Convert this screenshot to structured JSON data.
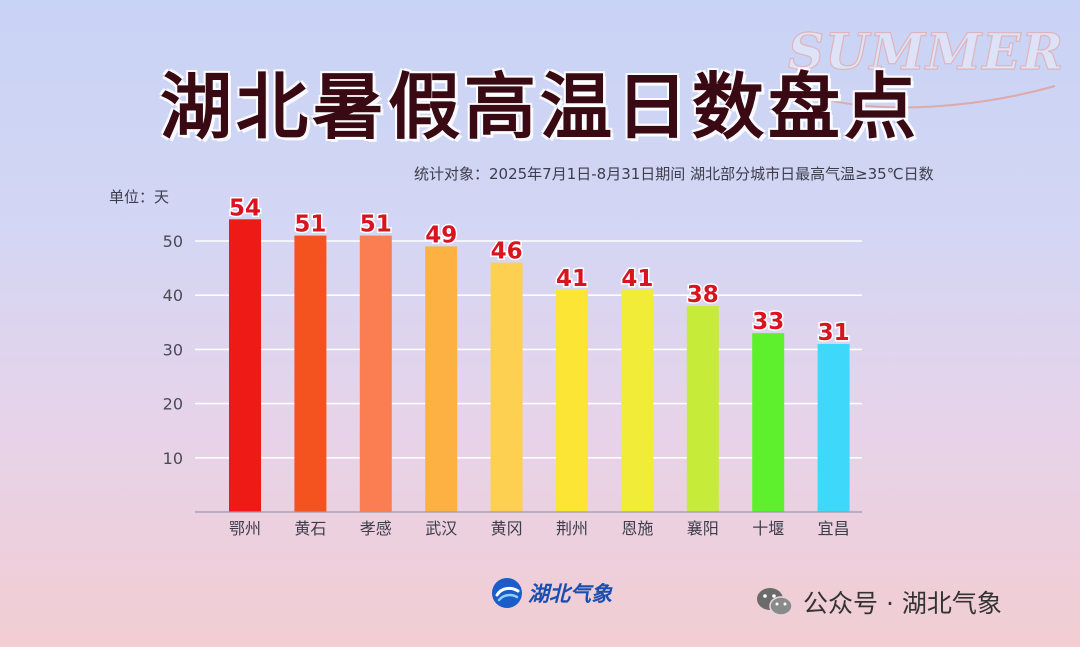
{
  "title": "湖北暑假高温日数盘点",
  "watermark": "SUMMER",
  "subtitle": "统计对象：2025年7月1日-8月31日期间 湖北部分城市日最高气温≥35℃日数",
  "unit_label": "单位：天",
  "chart_data": {
    "type": "bar",
    "title": "湖北暑假高温日数盘点",
    "xlabel": "",
    "ylabel": "单位：天",
    "categories": [
      "鄂州",
      "黄石",
      "孝感",
      "武汉",
      "黄冈",
      "荆州",
      "恩施",
      "襄阳",
      "十堰",
      "宜昌"
    ],
    "values": [
      54,
      51,
      51,
      49,
      46,
      41,
      41,
      38,
      33,
      31
    ],
    "value_labels": [
      "54",
      "51",
      "51",
      "49",
      "46",
      "41",
      "41",
      "38",
      "33",
      "31"
    ],
    "colors": [
      "#ee1a16",
      "#f4521f",
      "#fb7d52",
      "#fdb143",
      "#fdd052",
      "#fde535",
      "#f0ec38",
      "#c6eb38",
      "#5ef02d",
      "#3ed8fa"
    ],
    "yticks": [
      10,
      20,
      30,
      40,
      50
    ],
    "ylim": [
      0,
      55
    ],
    "grid": true,
    "label_color": "#d8141f"
  },
  "logo_text": "湖北气象",
  "wechat_text": "公众号 · 湖北气象",
  "icons": {
    "logo": "hubei-weather-logo-icon",
    "wechat": "wechat-icon"
  }
}
